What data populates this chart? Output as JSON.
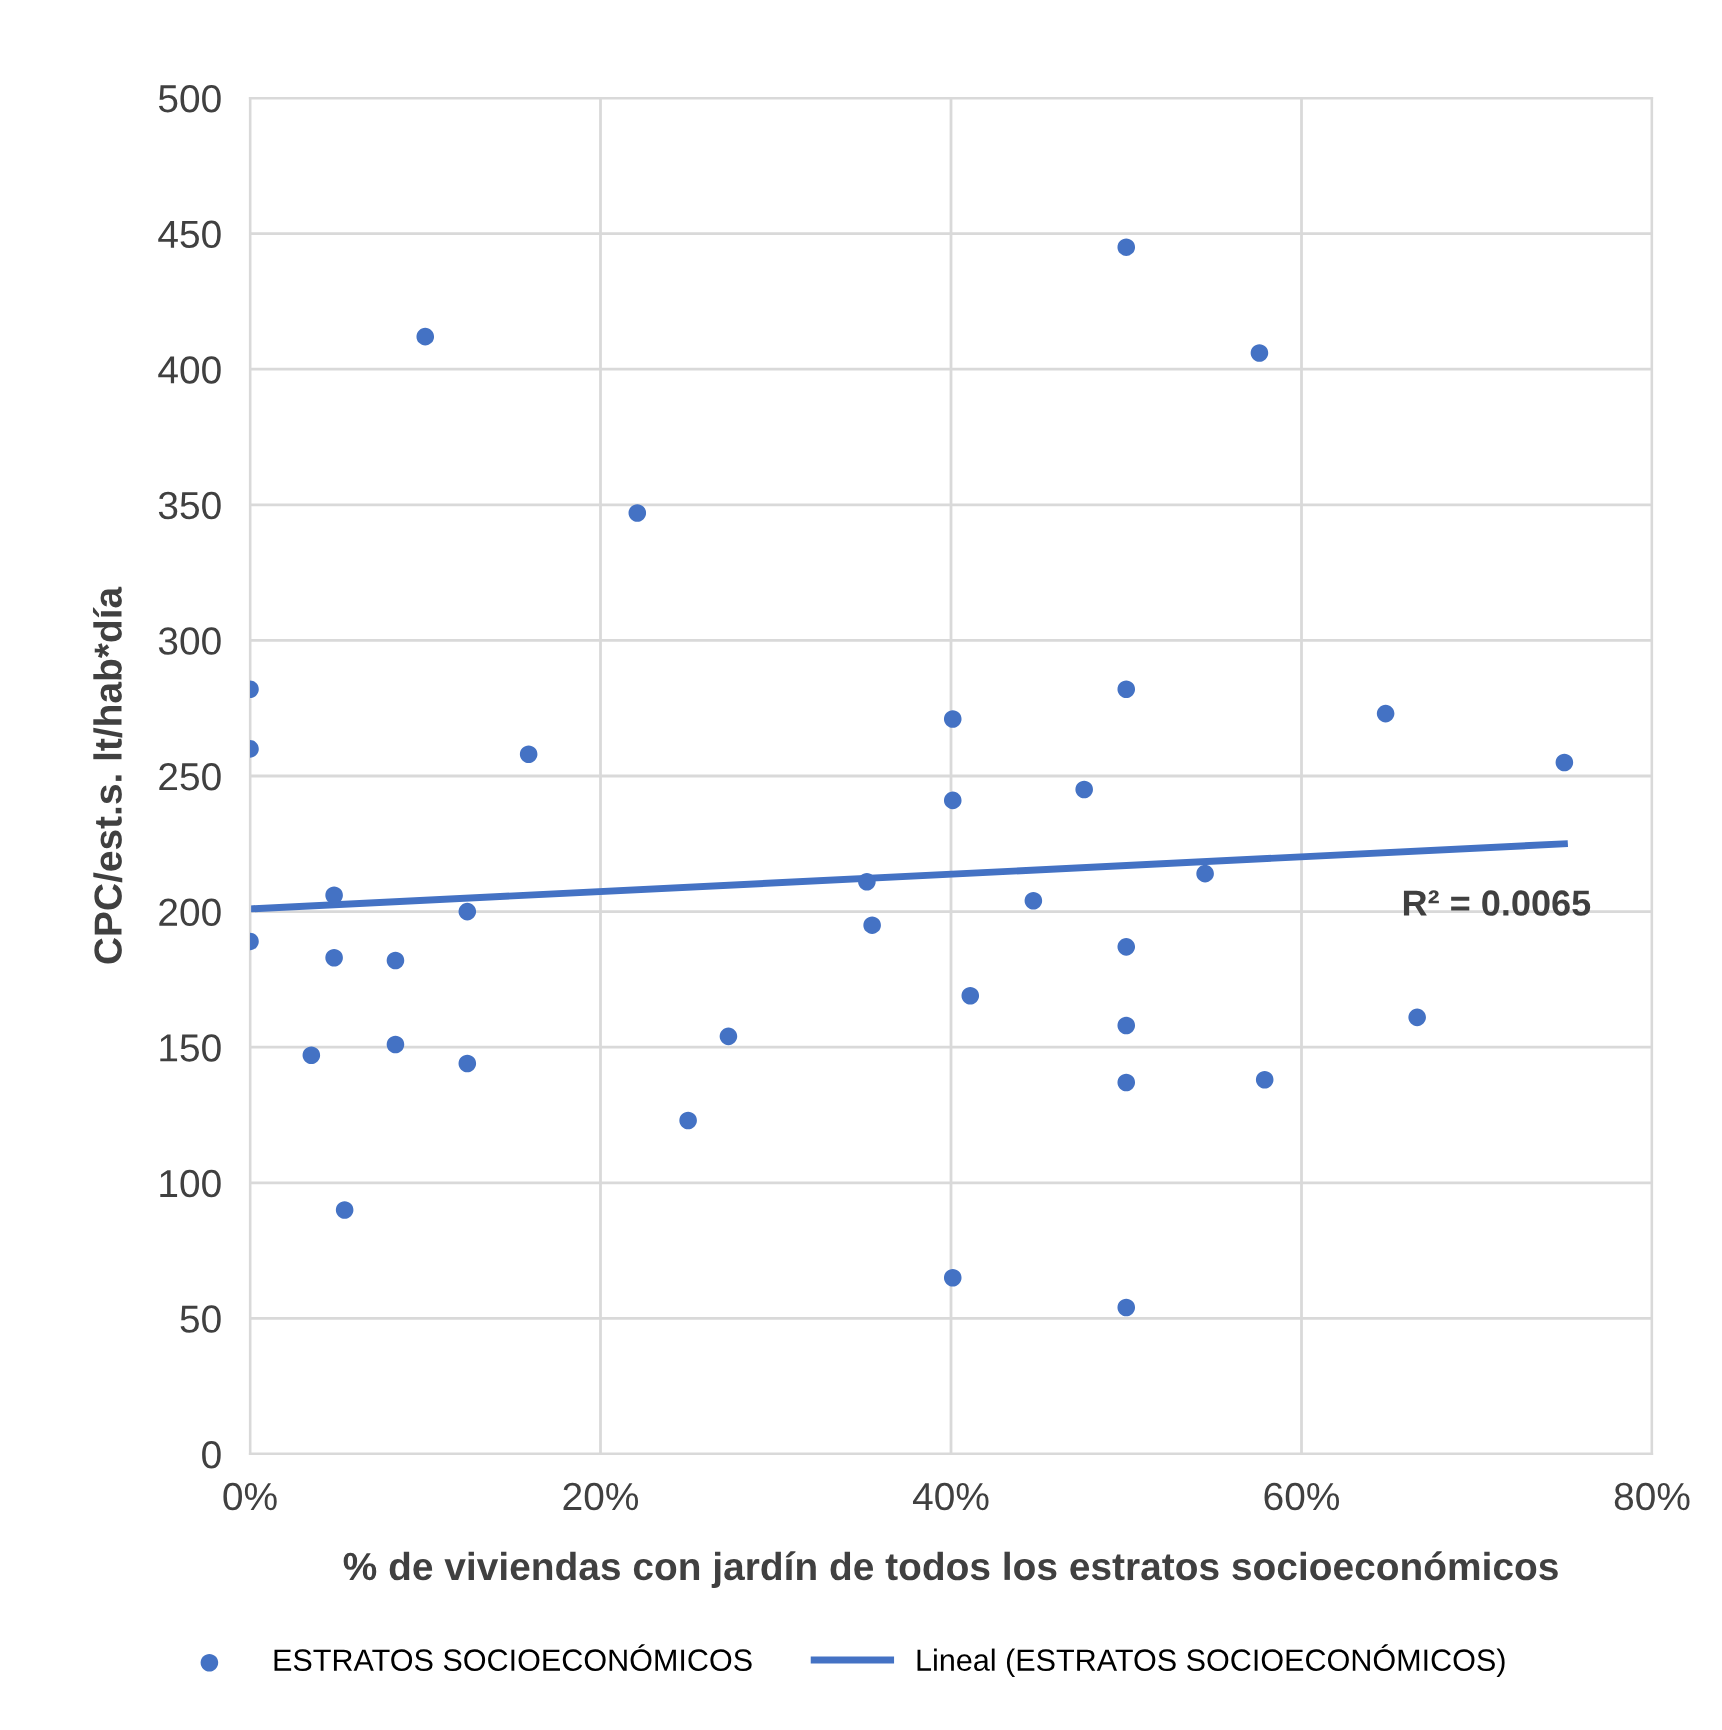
{
  "chart_data": {
    "type": "scatter",
    "xlabel": "% de viviendas con jardín de todos los estratos socioeconómicos",
    "ylabel": "CPC/est.s. lt/hab*día",
    "xlim": [
      0,
      80
    ],
    "ylim": [
      0,
      500
    ],
    "xticks": [
      {
        "value": 0,
        "label": "0%"
      },
      {
        "value": 20,
        "label": "20%"
      },
      {
        "value": 40,
        "label": "40%"
      },
      {
        "value": 60,
        "label": "60%"
      },
      {
        "value": 80,
        "label": "80%"
      }
    ],
    "yticks": [
      0,
      50,
      100,
      150,
      200,
      250,
      300,
      350,
      400,
      450,
      500
    ],
    "grid": true,
    "legend": "bottom",
    "series": [
      {
        "name": "ESTRATOS SOCIOECONÓMICOS",
        "marker": "circle",
        "color": "#4472c4",
        "x": [
          0,
          0,
          0,
          3.5,
          4.8,
          4.8,
          5.4,
          8.3,
          8.3,
          10,
          12.4,
          12.4,
          15.9,
          22.1,
          25,
          27.3,
          35.2,
          35.5,
          40.1,
          40.1,
          40.1,
          41.1,
          44.7,
          47.6,
          50,
          50,
          50,
          50,
          50,
          50,
          54.5,
          57.6,
          57.9,
          64.8,
          66.6,
          75
        ],
        "values": [
          282,
          260,
          189,
          147,
          206,
          183,
          90,
          182,
          151,
          412,
          200,
          144,
          258,
          347,
          123,
          154,
          211,
          195,
          271,
          241,
          65,
          169,
          204,
          245,
          445,
          282,
          187,
          158,
          137,
          54,
          214,
          406,
          138,
          273,
          161,
          255
        ]
      },
      {
        "name": "Lineal (ESTRATOS SOCIOECONÓMICOS)",
        "type": "line",
        "color": "#4472c4",
        "line_style": "solid",
        "x": [
          0,
          75
        ],
        "values": [
          201,
          225
        ]
      }
    ],
    "annotations": [
      "R² = 0.0065"
    ]
  }
}
